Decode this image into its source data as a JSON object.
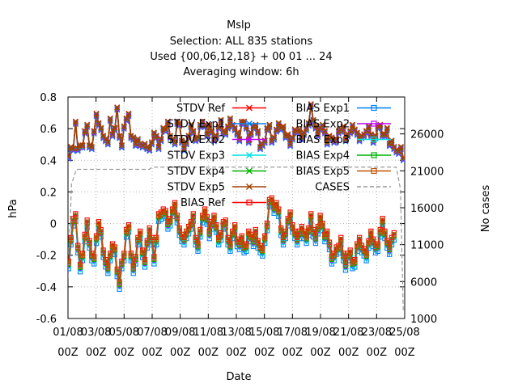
{
  "chart_data": {
    "type": "line",
    "title": "Mslp",
    "subtitle_lines": [
      "Selection: ALL    835 stations",
      "Used {00,06,12,18} + 00 01 ... 24",
      "Averaging window:  6h"
    ],
    "xlabel": "Date",
    "ylabel": "hPa",
    "y2label": "No cases",
    "ylim": [
      -0.6,
      0.8
    ],
    "y2lim": [
      1000,
      31000
    ],
    "yticks": [
      "-0.6",
      "-0.4",
      "-0.2",
      "0",
      "0.2",
      "0.4",
      "0.6",
      "0.8"
    ],
    "y2ticks": [
      "1000",
      "6000",
      "11000",
      "16000",
      "21000",
      "26000"
    ],
    "xticks_top": [
      "01/08",
      "03/08",
      "05/08",
      "07/08",
      "09/08",
      "11/08",
      "13/08",
      "15/08",
      "17/08",
      "19/08",
      "21/08",
      "23/08",
      "25/08"
    ],
    "xticks_bottom": [
      "00Z",
      "00Z",
      "00Z",
      "00Z",
      "00Z",
      "00Z",
      "00Z",
      "00Z",
      "00Z",
      "00Z",
      "00Z",
      "00Z",
      "00Z"
    ],
    "x_range_days": [
      0,
      24
    ],
    "grid": true,
    "legend_position": "top",
    "stdv_base": [
      0.42,
      0.48,
      0.47,
      0.64,
      0.47,
      0.49,
      0.49,
      0.58,
      0.62,
      0.49,
      0.48,
      0.58,
      0.69,
      0.63,
      0.6,
      0.55,
      0.53,
      0.51,
      0.66,
      0.56,
      0.6,
      0.73,
      0.55,
      0.49,
      0.61,
      0.66,
      0.69,
      0.55,
      0.54,
      0.5,
      0.53,
      0.5,
      0.49,
      0.5,
      0.48,
      0.47,
      0.51,
      0.57,
      0.55,
      0.48,
      0.53,
      0.6,
      0.59,
      0.64,
      0.55,
      0.53,
      0.51,
      0.64,
      0.63,
      0.52,
      0.47,
      0.51,
      0.55,
      0.62,
      0.58,
      0.53,
      0.54,
      0.62,
      0.64,
      0.62,
      0.56,
      0.62,
      0.58,
      0.53,
      0.55,
      0.61,
      0.65,
      0.58,
      0.57,
      0.61,
      0.66,
      0.62,
      0.6,
      0.57,
      0.53,
      0.64,
      0.64,
      0.61,
      0.52,
      0.57,
      0.61,
      0.62,
      0.58,
      0.48,
      0.5,
      0.52,
      0.6,
      0.62,
      0.52,
      0.54,
      0.59,
      0.63,
      0.6,
      0.61,
      0.55,
      0.56,
      0.5,
      0.54,
      0.59,
      0.58,
      0.59,
      0.54,
      0.57,
      0.6,
      0.63,
      0.75,
      0.65,
      0.61,
      0.56,
      0.6,
      0.62,
      0.58,
      0.51,
      0.55,
      0.54,
      0.52,
      0.53,
      0.58,
      0.59,
      0.61,
      0.53,
      0.56,
      0.58,
      0.62,
      0.59,
      0.57,
      0.53,
      0.55,
      0.56,
      0.58,
      0.61,
      0.56,
      0.52,
      0.55,
      0.61,
      0.62,
      0.56,
      0.56,
      0.6,
      0.5,
      0.52,
      0.48,
      0.46,
      0.45,
      0.48,
      0.41
    ],
    "bias_base": [
      -0.25,
      -0.1,
      0.02,
      0.05,
      -0.15,
      -0.27,
      -0.2,
      -0.08,
      0.01,
      -0.12,
      -0.2,
      -0.22,
      -0.09,
      0.0,
      -0.05,
      -0.18,
      -0.24,
      -0.28,
      -0.2,
      -0.14,
      -0.16,
      -0.3,
      -0.38,
      -0.25,
      -0.2,
      -0.05,
      -0.02,
      -0.2,
      -0.28,
      -0.22,
      -0.1,
      -0.06,
      -0.18,
      -0.24,
      -0.12,
      -0.04,
      -0.1,
      -0.22,
      -0.1,
      0.05,
      0.06,
      0.08,
      0.07,
      0.0,
      0.02,
      0.08,
      0.12,
      0.04,
      -0.04,
      -0.08,
      -0.1,
      -0.06,
      -0.03,
      0.0,
      0.05,
      -0.1,
      -0.14,
      -0.05,
      0.04,
      0.08,
      0.03,
      -0.06,
      0.0,
      0.04,
      -0.02,
      -0.1,
      -0.07,
      0.0,
      0.01,
      -0.1,
      -0.14,
      -0.06,
      -0.02,
      -0.11,
      -0.13,
      -0.09,
      -0.15,
      -0.14,
      -0.06,
      -0.08,
      -0.11,
      -0.05,
      -0.12,
      -0.15,
      -0.17,
      -0.09,
      -0.01,
      0.14,
      0.15,
      0.1,
      0.12,
      0.08,
      -0.04,
      -0.1,
      -0.06,
      0.02,
      0.06,
      -0.02,
      -0.06,
      -0.1,
      -0.06,
      -0.03,
      -0.06,
      -0.09,
      -0.04,
      0.05,
      -0.05,
      -0.09,
      -0.03,
      0.04,
      -0.01,
      -0.08,
      -0.06,
      -0.13,
      -0.22,
      -0.2,
      -0.16,
      -0.15,
      -0.1,
      -0.2,
      -0.26,
      -0.2,
      -0.18,
      -0.25,
      -0.24,
      -0.14,
      -0.1,
      -0.15,
      -0.17,
      -0.2,
      -0.12,
      -0.06,
      -0.11,
      -0.15,
      -0.14,
      -0.05,
      0.02,
      -0.06,
      -0.12,
      -0.16,
      -0.1,
      -0.07
    ],
    "series": [
      {
        "name": "STDV Ref",
        "color": "#ff0000",
        "marker": "x"
      },
      {
        "name": "BIAS Exp1",
        "color": "#0080ff",
        "marker": "square"
      },
      {
        "name": "STDV Exp1",
        "color": "#0080ff",
        "marker": "x"
      },
      {
        "name": "BIAS Exp2",
        "color": "#c000ff",
        "marker": "square"
      },
      {
        "name": "STDV Exp2",
        "color": "#c000ff",
        "marker": "x"
      },
      {
        "name": "BIAS Exp3",
        "color": "#00e0e0",
        "marker": "square"
      },
      {
        "name": "STDV Exp3",
        "color": "#00e0e0",
        "marker": "x"
      },
      {
        "name": "BIAS Exp4",
        "color": "#00b000",
        "marker": "square"
      },
      {
        "name": "STDV Exp4",
        "color": "#00b000",
        "marker": "x"
      },
      {
        "name": "BIAS Exp5",
        "color": "#c05000",
        "marker": "square"
      },
      {
        "name": "STDV Exp5",
        "color": "#a04000",
        "marker": "x"
      },
      {
        "name": "CASES",
        "color": "#999999",
        "marker": "none"
      },
      {
        "name": "BIAS Ref",
        "color": "#ff0000",
        "marker": "square"
      }
    ],
    "cases": {
      "plateau_first": 21200,
      "plateau_second": 21500,
      "start": 6500,
      "end": 1800
    }
  }
}
